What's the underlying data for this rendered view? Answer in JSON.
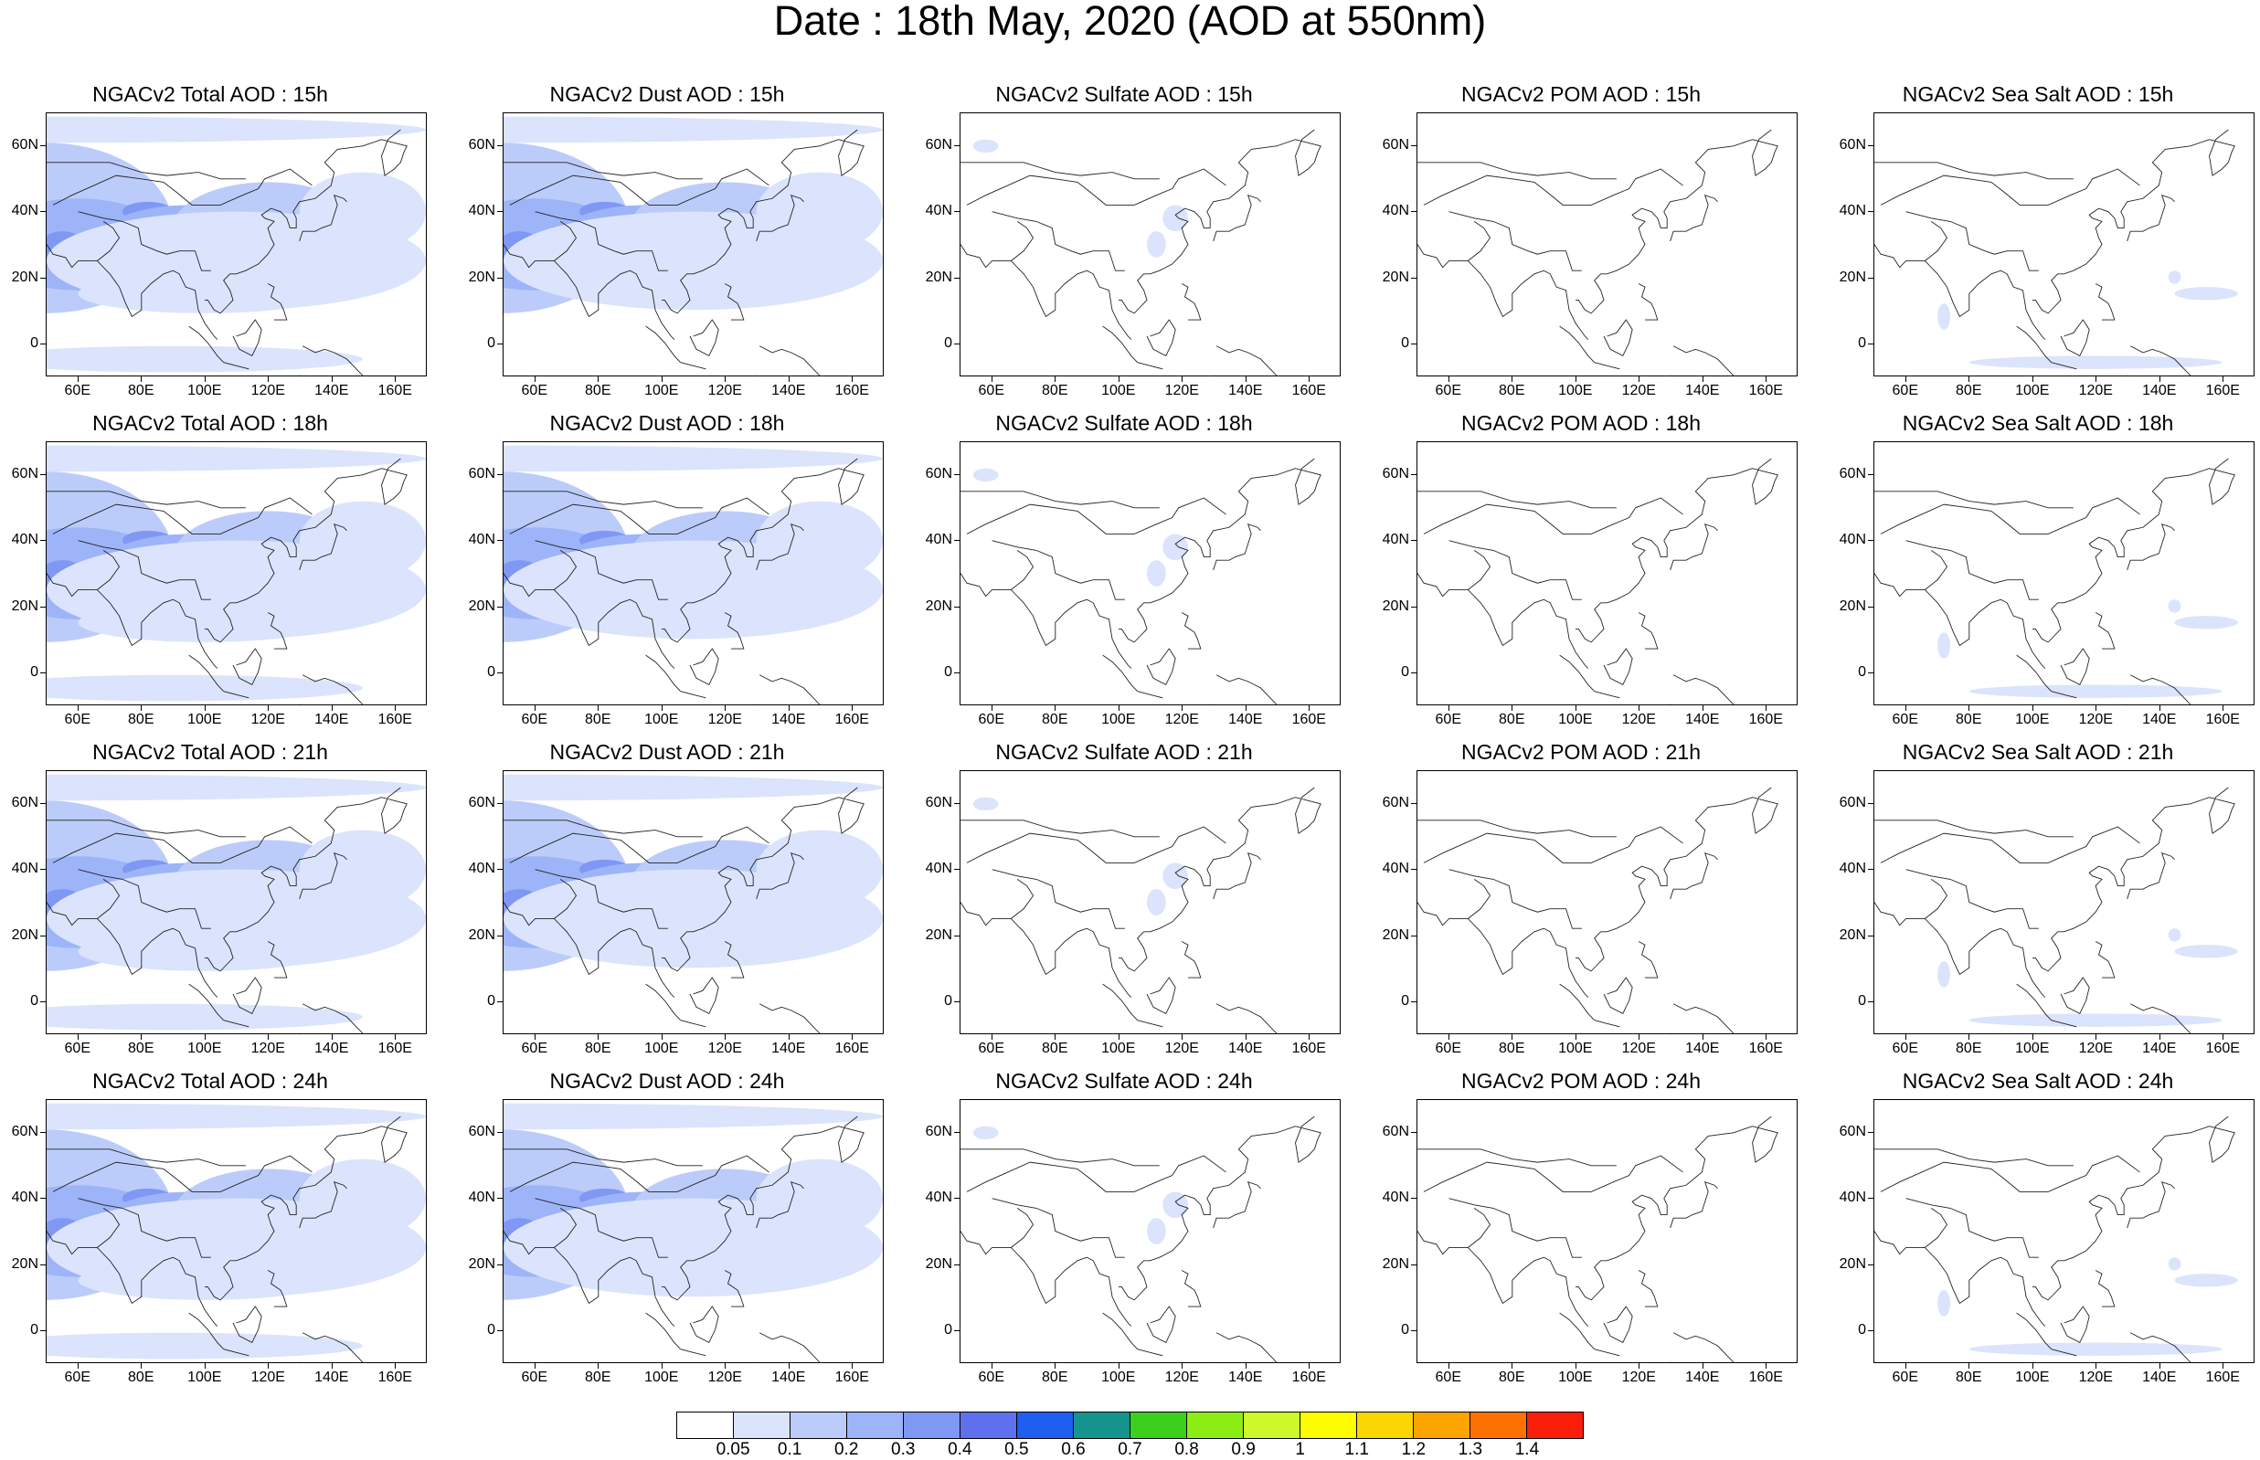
{
  "title": "Date : 18th May, 2020 (AOD at 550nm)",
  "axes": {
    "lat_ticks": [
      "60N",
      "40N",
      "20N",
      "0"
    ],
    "lon_ticks": [
      "60E",
      "80E",
      "100E",
      "120E",
      "140E",
      "160E"
    ]
  },
  "panels": [
    {
      "title": "NGACv2 Total AOD : 15h",
      "product": "total"
    },
    {
      "title": "NGACv2 Dust AOD : 15h",
      "product": "dust"
    },
    {
      "title": "NGACv2 Sulfate AOD : 15h",
      "product": "sulfate"
    },
    {
      "title": "NGACv2 POM AOD : 15h",
      "product": "pom"
    },
    {
      "title": "NGACv2 Sea Salt AOD : 15h",
      "product": "seasalt"
    },
    {
      "title": "NGACv2 Total AOD : 18h",
      "product": "total"
    },
    {
      "title": "NGACv2 Dust AOD : 18h",
      "product": "dust"
    },
    {
      "title": "NGACv2 Sulfate AOD : 18h",
      "product": "sulfate"
    },
    {
      "title": "NGACv2 POM AOD : 18h",
      "product": "pom"
    },
    {
      "title": "NGACv2 Sea Salt AOD : 18h",
      "product": "seasalt"
    },
    {
      "title": "NGACv2 Total AOD : 21h",
      "product": "total"
    },
    {
      "title": "NGACv2 Dust AOD : 21h",
      "product": "dust"
    },
    {
      "title": "NGACv2 Sulfate AOD : 21h",
      "product": "sulfate"
    },
    {
      "title": "NGACv2 POM AOD : 21h",
      "product": "pom"
    },
    {
      "title": "NGACv2 Sea Salt AOD : 21h",
      "product": "seasalt"
    },
    {
      "title": "NGACv2 Total AOD : 24h",
      "product": "total"
    },
    {
      "title": "NGACv2 Dust AOD : 24h",
      "product": "dust"
    },
    {
      "title": "NGACv2 Sulfate AOD : 24h",
      "product": "sulfate"
    },
    {
      "title": "NGACv2 POM AOD : 24h",
      "product": "pom"
    },
    {
      "title": "NGACv2 Sea Salt  AOD : 24h",
      "product": "seasalt"
    }
  ],
  "colorbar": {
    "colors": [
      "#ffffff",
      "#dbe4fc",
      "#bcccfa",
      "#9db4f8",
      "#7f98f4",
      "#5f70ee",
      "#1e5ef0",
      "#14948c",
      "#3cd01e",
      "#8ced14",
      "#cdf82a",
      "#fefe00",
      "#fcd600",
      "#fca400",
      "#fb7200",
      "#f81e0a"
    ],
    "labels": [
      "0.05",
      "0.1",
      "0.2",
      "0.3",
      "0.4",
      "0.5",
      "0.6",
      "0.7",
      "0.8",
      "0.9",
      "1",
      "1.1",
      "1.2",
      "1.3",
      "1.4"
    ]
  }
}
